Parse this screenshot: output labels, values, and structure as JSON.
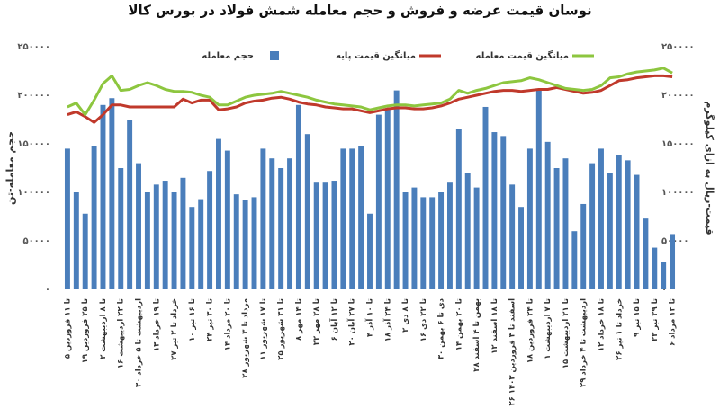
{
  "chart_data": {
    "type": "bar",
    "title": "نوسان قیمت عرضه و فروش و حجم معامله شمش فولاد در بورس کالا",
    "y_label": "حجم معامله-تن",
    "y2_label": "قیمت-ریال به ازای کیلوگرم",
    "categories": [
      "۵ تا ۱۱ فروردین",
      null,
      "۱۹ تا ۲۵ فروردین",
      null,
      "۲ تا ۸ اردیبهشت",
      null,
      "۱۶ تا ۲۲ اردیبهشت",
      null,
      "۳۰ اردیبهشت تا ۵ خرداد",
      null,
      "۱۳ تا ۱۹ خرداد",
      null,
      "۲۷ خرداد تا ۲ تیر",
      null,
      "۱۰ تا ۱۶ تیر",
      null,
      "۲۴ تا ۳۰ تیر",
      null,
      "۱۴ تا ۲۰ مرداد",
      null,
      "۲۸ مرداد تا ۳ شهریور",
      null,
      "۱۱ تا ۱۷ شهریور",
      null,
      "۲۵ تا ۳۱ شهریور",
      null,
      "۸ تا ۱۴ مهر",
      null,
      "۲۲ تا ۲۸ مهر",
      null,
      "۶ تا ۱۲ آبان",
      null,
      "۲۰ تا ۲۷ آبان",
      null,
      "۴ تا ۱۰ آذر",
      null,
      "۱۸ تا ۲۴ آذر",
      null,
      "۲ تا ۸ دی",
      null,
      "۱۶ تا ۲۲ دی",
      null,
      "۳۰ دی تا ۶ بهمن",
      null,
      "۱۴ تا ۲۰ بهمن",
      null,
      "۲۸ بهمن تا ۴ اسفند",
      null,
      "۱۲ تا ۱۸ اسفند",
      null,
      "۲۶ اسفند تا ۳ فروردین ۱۴۰۳",
      null,
      "۱۸ تا ۲۴ فروردین",
      null,
      "۱ تا ۷ اردیبهشت",
      null,
      "۱۵ تا ۲۱ اردیبهشت",
      null,
      "۲۹ اردیبهشت تا ۴ خرداد",
      null,
      "۱۲ تا ۱۸ خرداد",
      null,
      "۲۶ خرداد تا ۱ تیر",
      null,
      "۹ تا ۱۵ تیر",
      null,
      "۲۳ تا ۲۹ تیر",
      null,
      "۶ تا ۱۲ مرداد"
    ],
    "series": [
      {
        "name": "حجم معامله",
        "color": "#4a7ebb",
        "type": "bar",
        "values": [
          145000,
          100000,
          78000,
          148000,
          190000,
          197000,
          125000,
          175000,
          130000,
          100000,
          108000,
          112000,
          100000,
          115000,
          85000,
          93000,
          122000,
          155000,
          143000,
          98000,
          92000,
          95000,
          145000,
          135000,
          125000,
          135000,
          190000,
          160000,
          110000,
          110000,
          112000,
          145000,
          145000,
          148000,
          78000,
          180000,
          186000,
          205000,
          100000,
          105000,
          95000,
          95000,
          100000,
          110000,
          165000,
          120000,
          105000,
          188000,
          162000,
          158000,
          108000,
          85000,
          145000,
          205000,
          152000,
          125000,
          135000,
          60000,
          88000,
          130000,
          145000,
          120000,
          138000,
          133000,
          118000,
          73000,
          43000,
          28000,
          57000
        ]
      },
      {
        "name": "میانگین قیمت پایه",
        "color": "#c0392b",
        "type": "line",
        "axis": "y2",
        "values": [
          180000,
          183000,
          178000,
          172000,
          180000,
          190000,
          190000,
          188000,
          188000,
          188000,
          188000,
          188000,
          188000,
          196000,
          192000,
          195000,
          195000,
          185000,
          186000,
          188000,
          192000,
          194000,
          195000,
          197000,
          198000,
          196000,
          193000,
          191000,
          190000,
          188000,
          187000,
          186000,
          186000,
          184000,
          182000,
          184000,
          186000,
          187000,
          187000,
          186000,
          186000,
          187000,
          189000,
          192000,
          196000,
          198000,
          200000,
          202000,
          204000,
          205000,
          205000,
          204000,
          205000,
          206000,
          206000,
          208000,
          206000,
          204000,
          202000,
          203000,
          205000,
          210000,
          215000,
          216000,
          218000,
          219000,
          220000,
          220000,
          219000
        ]
      },
      {
        "name": "میانگین قیمت معامله",
        "color": "#8dc63f",
        "type": "line",
        "axis": "y2",
        "values": [
          188000,
          192000,
          180000,
          195000,
          212000,
          220000,
          205000,
          206000,
          210000,
          213000,
          210000,
          206000,
          204000,
          204000,
          203000,
          200000,
          198000,
          190000,
          190000,
          194000,
          198000,
          200000,
          201000,
          202000,
          204000,
          202000,
          200000,
          198000,
          195000,
          193000,
          191000,
          190000,
          189000,
          188000,
          185000,
          187000,
          189000,
          190000,
          190000,
          189000,
          190000,
          191000,
          192000,
          196000,
          205000,
          202000,
          205000,
          207000,
          210000,
          213000,
          214000,
          215000,
          218000,
          216000,
          213000,
          210000,
          207000,
          206000,
          205000,
          206000,
          210000,
          218000,
          219000,
          222000,
          224000,
          225000,
          226000,
          228000,
          223000
        ]
      }
    ],
    "ylim": [
      0,
      250000
    ],
    "yticks": [
      {
        "value": 0,
        "label": "۰"
      },
      {
        "value": 50000,
        "label": "۵۰۰۰۰"
      },
      {
        "value": 100000,
        "label": "۱۰۰۰۰۰"
      },
      {
        "value": 150000,
        "label": "۱۵۰۰۰۰"
      },
      {
        "value": 200000,
        "label": "۲۰۰۰۰۰"
      },
      {
        "value": 250000,
        "label": "۲۵۰۰۰۰"
      }
    ],
    "y2lim": [
      0,
      250000
    ],
    "y2ticks": [
      {
        "value": 0,
        "label": "۰"
      },
      {
        "value": 50000,
        "label": "۵۰۰۰۰"
      },
      {
        "value": 100000,
        "label": "۱۰۰۰۰۰"
      },
      {
        "value": 150000,
        "label": "۱۵۰۰۰۰"
      },
      {
        "value": 200000,
        "label": "۲۰۰۰۰۰"
      },
      {
        "value": 250000,
        "label": "۲۵۰۰۰۰"
      }
    ],
    "grid": false,
    "legend": "top"
  }
}
